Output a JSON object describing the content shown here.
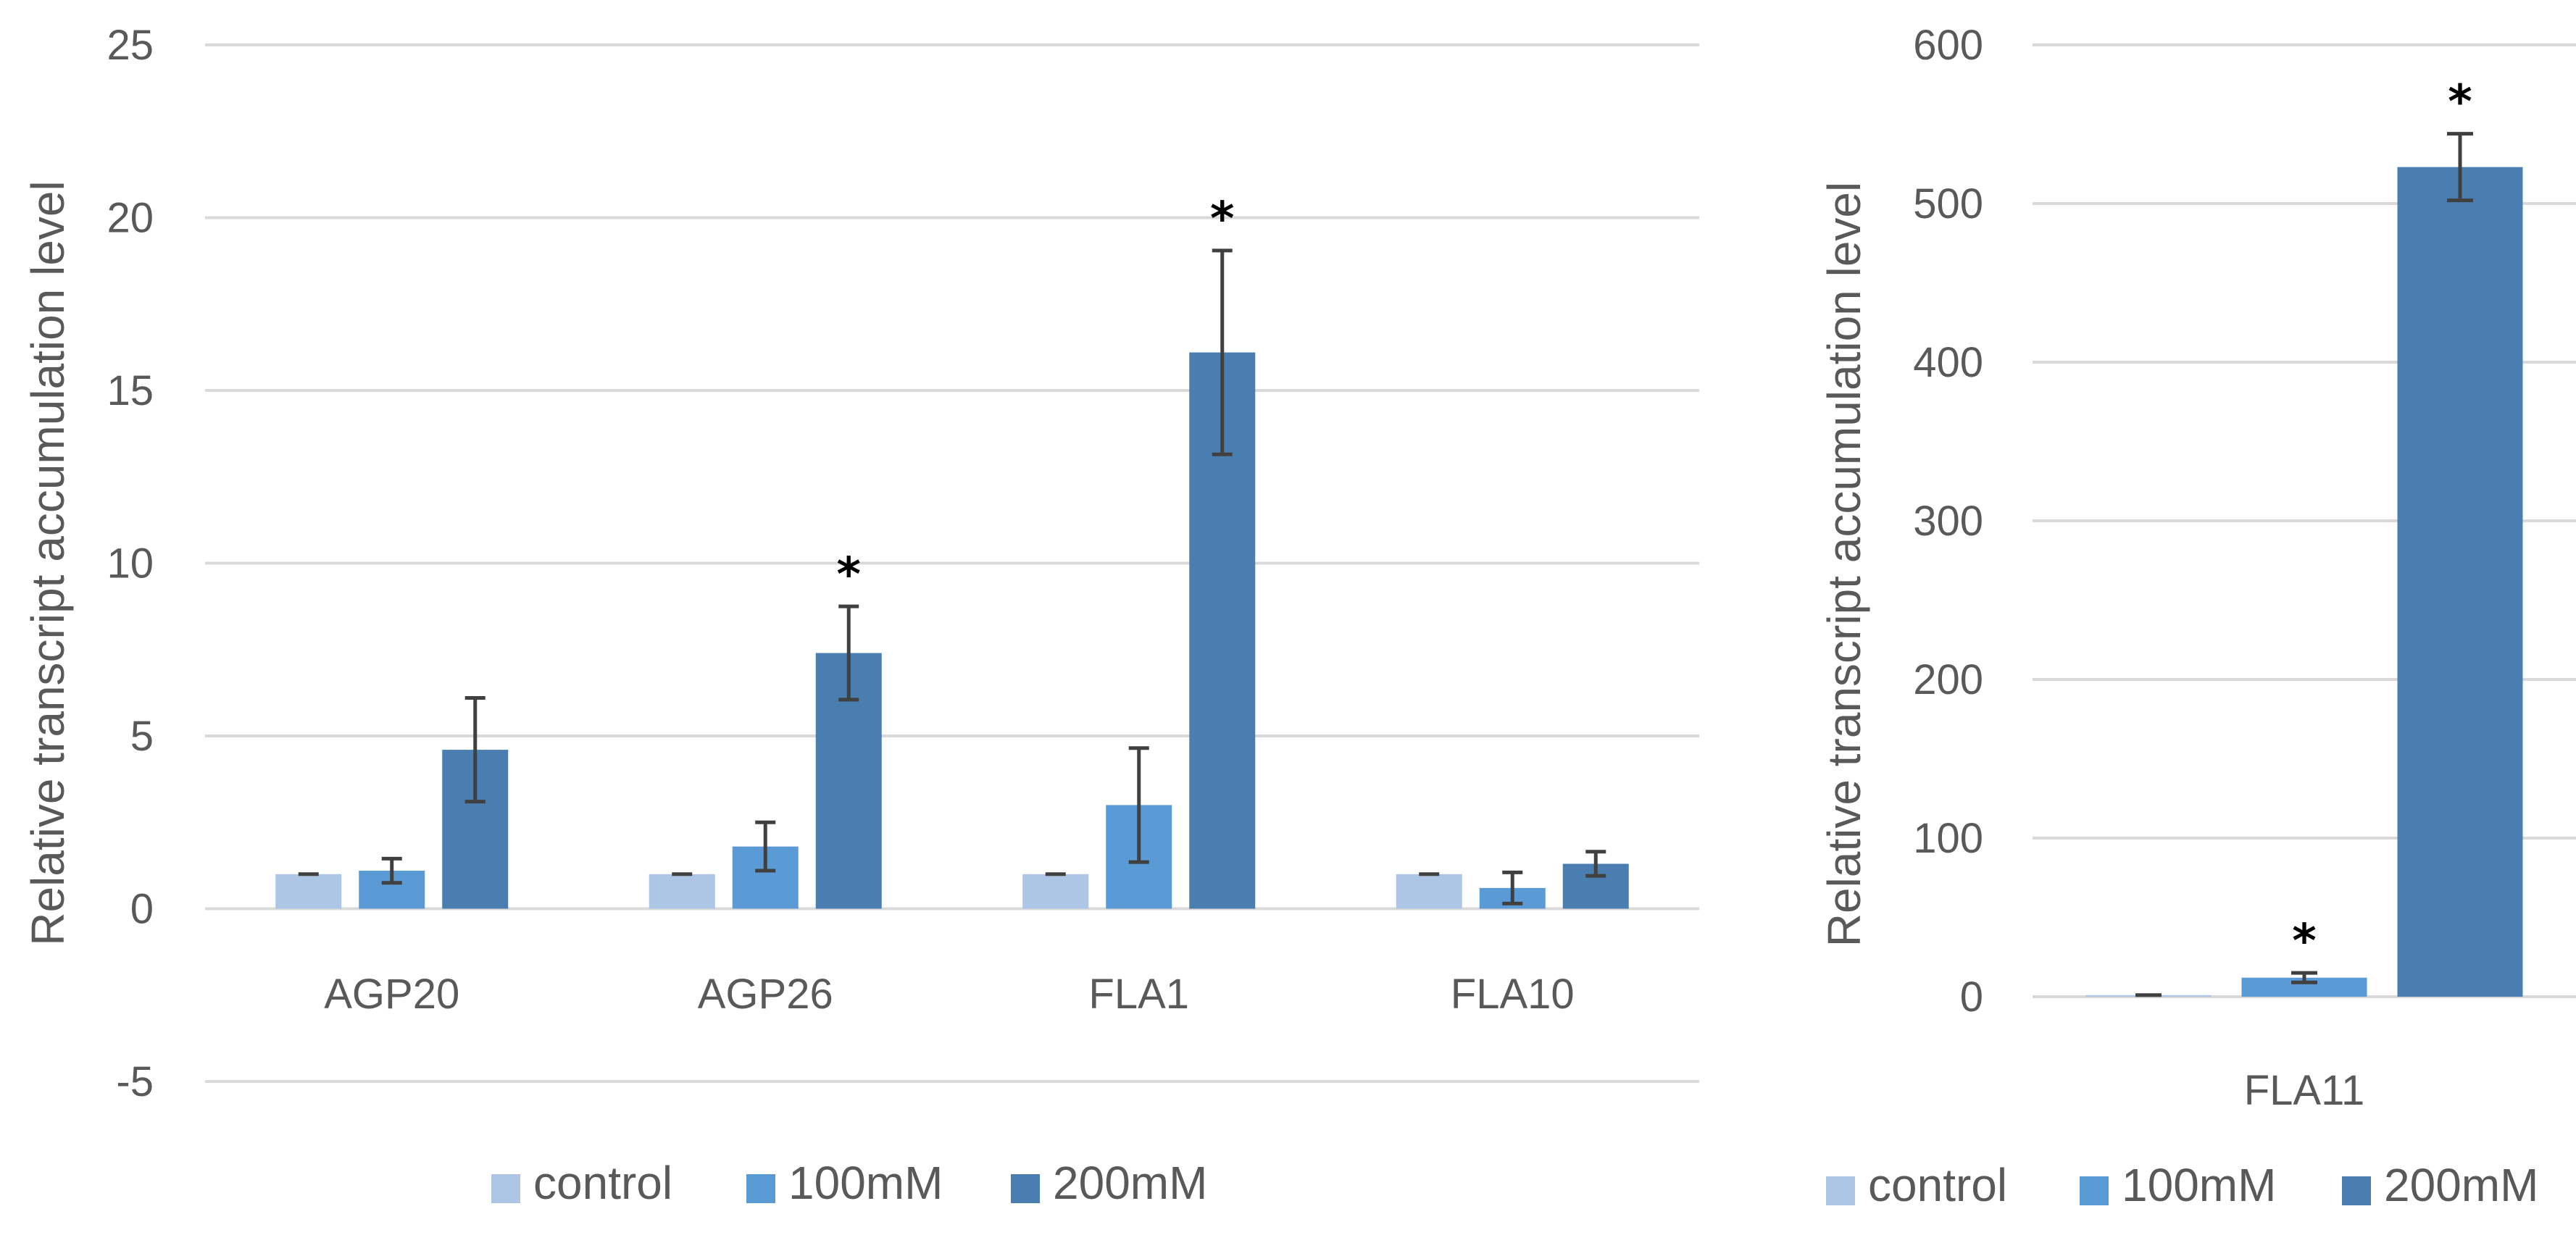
{
  "colors": {
    "control": "#adc6e6",
    "100mM": "#5b9bd5",
    "200mM": "#4a7eb0",
    "grid": "#d9d9d9",
    "error": "#404040"
  },
  "chart_data": [
    {
      "type": "bar",
      "ylabel": "Relative transcript accumulation level",
      "ylim": [
        -5,
        25
      ],
      "yticks": [
        25,
        20,
        15,
        10,
        5,
        0,
        -5
      ],
      "ytick_labels": [
        "25",
        "20",
        "15",
        "10",
        "5",
        "0",
        "-5"
      ],
      "grid": true,
      "legend_position": "bottom",
      "categories": [
        "AGP20",
        "AGP26",
        "FLA1",
        "FLA10"
      ],
      "series": [
        {
          "name": "control",
          "values": [
            1.0,
            1.0,
            1.0,
            1.0
          ],
          "errors": [
            0.0,
            0.0,
            0.0,
            0.0
          ],
          "significant": [
            false,
            false,
            false,
            false
          ]
        },
        {
          "name": "100mM",
          "values": [
            1.1,
            1.8,
            3.0,
            0.6
          ],
          "errors": [
            0.35,
            0.7,
            1.65,
            0.45
          ],
          "significant": [
            false,
            false,
            false,
            false
          ]
        },
        {
          "name": "200mM",
          "values": [
            4.6,
            7.4,
            16.1,
            1.3
          ],
          "errors": [
            1.5,
            1.35,
            2.95,
            0.35
          ],
          "significant": [
            false,
            true,
            true,
            false
          ]
        }
      ],
      "significance_marker": "*"
    },
    {
      "type": "bar",
      "ylabel": "Relative transcript accumulation level",
      "ylim": [
        0,
        600
      ],
      "yticks": [
        600,
        500,
        400,
        300,
        200,
        100,
        0
      ],
      "ytick_labels": [
        "600",
        "500",
        "400",
        "300",
        "200",
        "100",
        "0"
      ],
      "grid": true,
      "legend_position": "bottom",
      "categories": [
        "FLA11"
      ],
      "series": [
        {
          "name": "control",
          "values": [
            1.0
          ],
          "errors": [
            0.0
          ],
          "significant": [
            false
          ]
        },
        {
          "name": "100mM",
          "values": [
            12
          ],
          "errors": [
            3
          ],
          "significant": [
            true
          ]
        },
        {
          "name": "200mM",
          "values": [
            523
          ],
          "errors": [
            21
          ],
          "significant": [
            true
          ]
        }
      ],
      "significance_marker": "*"
    }
  ]
}
